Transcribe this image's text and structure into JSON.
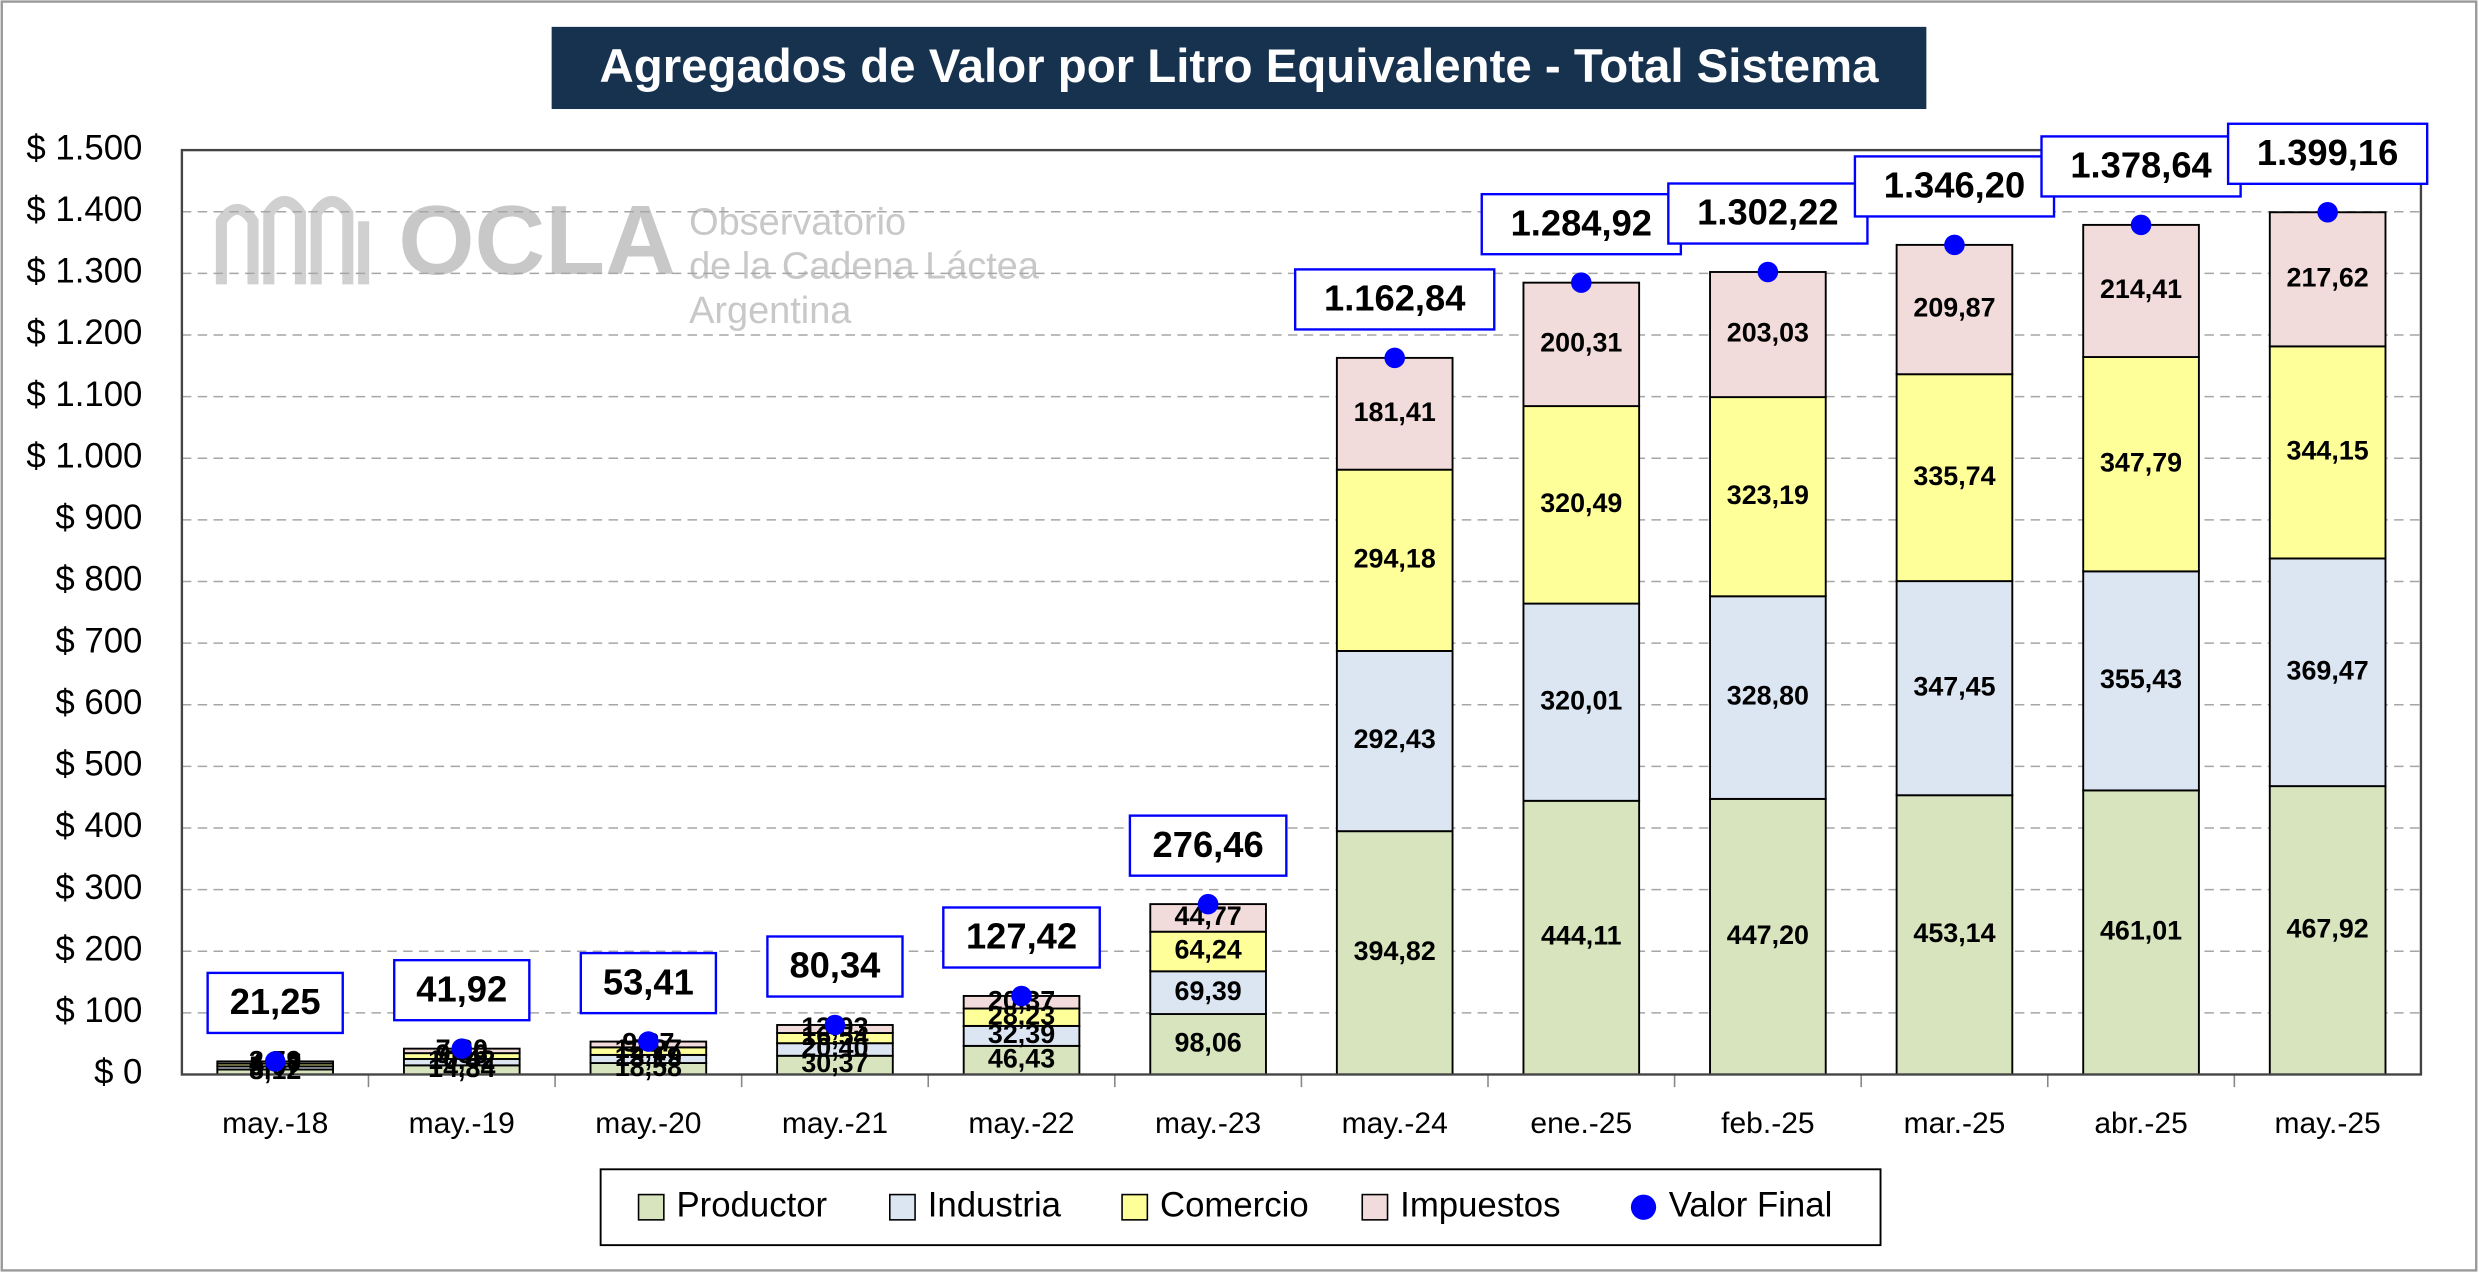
{
  "chart_data": {
    "type": "stacked_bar",
    "title": "Agregados de Valor por Litro Equivalente - Total Sistema",
    "watermark": [
      "OCLA",
      "Observatorio",
      "de la Cadena Láctea",
      "Argentina"
    ],
    "categories": [
      "may.-18",
      "may.-19",
      "may.-20",
      "may.-21",
      "may.-22",
      "may.-23",
      "may.-24",
      "ene.-25",
      "feb.-25",
      "mar.-25",
      "abr.-25",
      "may.-25"
    ],
    "series": [
      {
        "name": "Productor",
        "color": "#d7e4bd",
        "values": [
          8.12,
          14.84,
          18.58,
          30.37,
          46.43,
          98.06,
          394.82,
          444.11,
          447.2,
          453.14,
          461.01,
          467.92
        ],
        "value_labels": [
          "8,12",
          "14,84",
          "18,58",
          "30,37",
          "46,43",
          "98,06",
          "394,82",
          "444,11",
          "447,20",
          "453,14",
          "461,01",
          "467,92"
        ]
      },
      {
        "name": "Industria",
        "color": "#dce6f2",
        "values": [
          5.07,
          10.42,
          13.19,
          20.4,
          32.39,
          69.39,
          292.43,
          320.01,
          328.8,
          347.45,
          355.43,
          369.47
        ],
        "value_labels": [
          "5,07",
          "10,42",
          "13,19",
          "20,40",
          "32,39",
          "69,39",
          "292,43",
          "320,01",
          "328,80",
          "347,45",
          "355,43",
          "369,47"
        ]
      },
      {
        "name": "Comercio",
        "color": "#ffff99",
        "values": [
          4.47,
          9.36,
          12.27,
          16.54,
          28.23,
          64.24,
          294.18,
          320.49,
          323.19,
          335.74,
          347.79,
          344.15
        ],
        "value_labels": [
          "4,47",
          "9,36",
          "12,27",
          "16,54",
          "28,23",
          "64,24",
          "294,18",
          "320,49",
          "323,19",
          "335,74",
          "347,79",
          "344,15"
        ]
      },
      {
        "name": "Impuestos",
        "color": "#f2dcdb",
        "values": [
          3.59,
          7.3,
          9.37,
          13.03,
          20.37,
          44.77,
          181.41,
          200.31,
          203.03,
          209.87,
          214.41,
          217.62
        ],
        "value_labels": [
          "3,59",
          "7,30",
          "9,37",
          "13,03",
          "20,37",
          "44,77",
          "181,41",
          "200,31",
          "203,03",
          "209,87",
          "214,41",
          "217,62"
        ]
      }
    ],
    "total": {
      "name": "Valor Final",
      "color": "#0000ff",
      "values": [
        21.25,
        41.92,
        53.41,
        80.34,
        127.42,
        276.46,
        1162.84,
        1284.92,
        1302.22,
        1346.2,
        1378.64,
        1399.16
      ],
      "value_labels": [
        "21,25",
        "41,92",
        "53,41",
        "80,34",
        "127,42",
        "276,46",
        "1.162,84",
        "1.284,92",
        "1.302,22",
        "1.346,20",
        "1.378,64",
        "1.399,16"
      ]
    },
    "ylim": [
      0,
      1500
    ],
    "yticks": [
      {
        "value": 0,
        "label": "$ 0"
      },
      {
        "value": 100,
        "label": "$ 100"
      },
      {
        "value": 200,
        "label": "$ 200"
      },
      {
        "value": 300,
        "label": "$ 300"
      },
      {
        "value": 400,
        "label": "$ 400"
      },
      {
        "value": 500,
        "label": "$ 500"
      },
      {
        "value": 600,
        "label": "$ 600"
      },
      {
        "value": 700,
        "label": "$ 700"
      },
      {
        "value": 800,
        "label": "$ 800"
      },
      {
        "value": 900,
        "label": "$ 900"
      },
      {
        "value": 1000,
        "label": "$ 1.000"
      },
      {
        "value": 1100,
        "label": "$ 1.100"
      },
      {
        "value": 1200,
        "label": "$ 1.200"
      },
      {
        "value": 1300,
        "label": "$ 1.300"
      },
      {
        "value": 1400,
        "label": "$ 1.400"
      },
      {
        "value": 1500,
        "label": "$ 1.500"
      }
    ],
    "grid": true,
    "legend": "bottom"
  }
}
